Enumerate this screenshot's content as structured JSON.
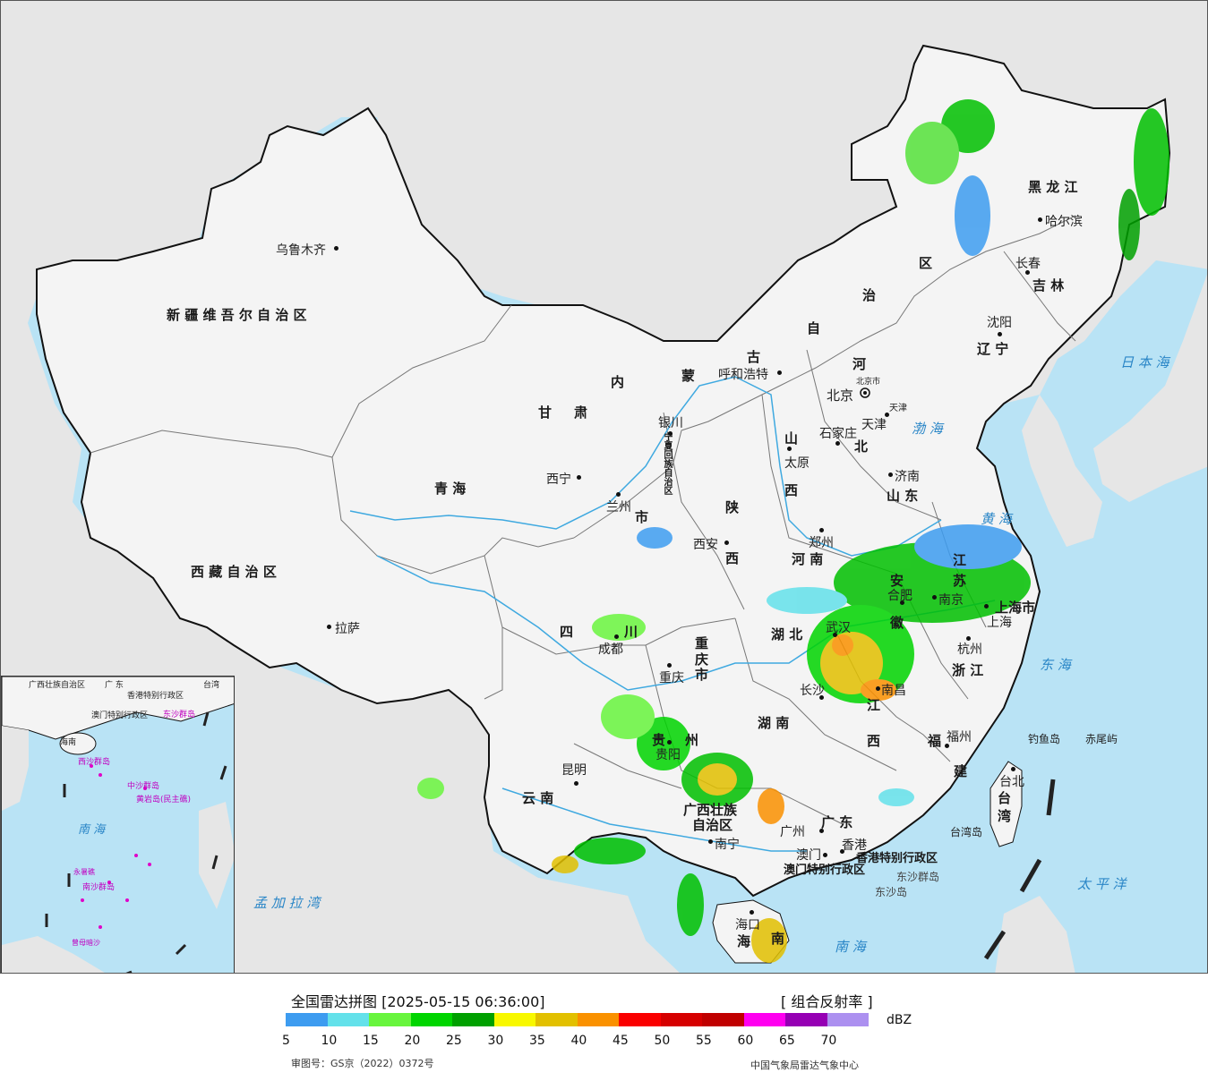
{
  "map": {
    "provinces": [
      "新疆维吾尔自治区",
      "西藏自治区",
      "青海",
      "甘肃",
      "内蒙古自治区",
      "黑龙江",
      "吉林",
      "辽宁",
      "河北",
      "山西",
      "山东",
      "河南",
      "陕西",
      "四川",
      "重庆市",
      "贵州",
      "云南",
      "广西壮族自治区",
      "广东",
      "湖南",
      "湖北",
      "江西",
      "安徽",
      "江苏",
      "浙江",
      "福建",
      "台湾",
      "海南",
      "宁夏回族自治区",
      "上海市",
      "香港特别行政区",
      "澳门特别行政区"
    ],
    "labels": {
      "xinjiang": "新 疆 维 吾 尔 自 治 区",
      "xizang": "西 藏 自 治 区",
      "qinghai": "青 海",
      "gansu_1": "甘",
      "gansu_2": "肃",
      "neimenggu_1": "内",
      "neimenggu_2": "蒙",
      "neimenggu_3": "古",
      "neimenggu_4": "自",
      "neimenggu_5": "治",
      "neimenggu_6": "区",
      "heilongjiang": "黑 龙 江",
      "jilin": "吉 林",
      "liaoning": "辽 宁",
      "hebei_1": "河",
      "hebei_2": "北",
      "shanxi_1": "山",
      "shanxi_2": "西",
      "shandong": "山 东",
      "henan": "河 南",
      "shaanxi_1": "陕",
      "shaanxi_2": "西",
      "sichuan_1": "四",
      "sichuan_2": "川",
      "chongqing_1": "重",
      "chongqing_2": "庆",
      "chongqing_3": "市",
      "guizhou_1": "贵",
      "guizhou_2": "州",
      "yunnan": "云 南",
      "guangxi_1": "广西壮族",
      "guangxi_2": "自治区",
      "guangdong": "广 东",
      "hunan": "湖 南",
      "hubei": "湖 北",
      "jiangxi_1": "江",
      "jiangxi_2": "西",
      "anhui_1": "安",
      "anhui_2": "徽",
      "jiangsu_1": "江",
      "jiangsu_2": "苏",
      "zhejiang": "浙 江",
      "fujian_1": "福",
      "fujian_2": "建",
      "taiwan_1": "台",
      "taiwan_2": "湾",
      "hainan_1": "海",
      "hainan_2": "南",
      "ningxia": "宁夏回族自治区",
      "shanghai": "上海市",
      "hongkong": "香港特别行政区",
      "macau": "澳门特别行政区",
      "gansu_city": "市",
      "beijing_small": "北京市",
      "tianjin_small": "天津"
    },
    "cities": {
      "urumqi": "乌鲁木齐",
      "lhasa": "拉萨",
      "xining": "西宁",
      "lanzhou": "兰州",
      "yinchuan": "银川",
      "hohhot": "呼和浩特",
      "harbin": "哈尔滨",
      "changchun": "长春",
      "shenyang": "沈阳",
      "beijing": "北京",
      "tianjin": "天津",
      "shijiazhuang": "石家庄",
      "taiyuan": "太原",
      "jinan": "济南",
      "zhengzhou": "郑州",
      "xian": "西安",
      "chengdu": "成都",
      "chongqing": "重庆",
      "guiyang": "贵阳",
      "kunming": "昆明",
      "nanning": "南宁",
      "guangzhou": "广州",
      "changsha": "长沙",
      "wuhan": "武汉",
      "nanchang": "南昌",
      "hefei": "合肥",
      "nanjing": "南京",
      "shanghai": "上海",
      "hangzhou": "杭州",
      "fuzhou": "福州",
      "taibei": "台北",
      "haikou": "海口",
      "hongkong": "香港",
      "macau": "澳门"
    },
    "seas": {
      "bohai": "渤 海",
      "huanghai": "黄 海",
      "donghai": "东 海",
      "nanhai": "南 海",
      "taipingyang": "太 平 洋",
      "ribenhai": "日 本 海",
      "mengjialawan": "孟 加 拉 湾"
    },
    "islands": {
      "diaoyudao": "钓鱼岛",
      "chiweiyu": "赤尾屿",
      "taiwandao": "台湾岛",
      "dongsha": "东沙群岛",
      "dongshadao": "东沙岛"
    },
    "inset": {
      "guangxi": "广西壮族自治区",
      "guangdong": "广 东",
      "taiwan": "台湾",
      "hk": "香港特别行政区",
      "macau": "澳门特别行政区",
      "hainan": "海南",
      "dongsha": "东沙群岛",
      "xisha": "西沙群岛",
      "zhongsha": "中沙群岛",
      "huangyan": "黄岩岛(民主礁)",
      "nansha": "南沙群岛",
      "zengmu": "曾母暗沙",
      "yongshu": "永暑礁",
      "nanhai": "南 海"
    },
    "colors": {
      "sea": "#b9e3f5",
      "foreign_land": "#e6e6e6",
      "china_land": "#f4f4f4",
      "border": "#111111",
      "river": "#3fa9e0"
    }
  },
  "legend": {
    "title": "全国雷达拼图 [2025-05-15 06:36:00]",
    "product": "[ 组合反射率 ]",
    "unit": "dBZ",
    "bins": [
      {
        "value": "5",
        "color": "#3d9cf0"
      },
      {
        "value": "10",
        "color": "#63e1ea"
      },
      {
        "value": "15",
        "color": "#68f53d"
      },
      {
        "value": "20",
        "color": "#00d500"
      },
      {
        "value": "25",
        "color": "#00a000"
      },
      {
        "value": "30",
        "color": "#f8f800"
      },
      {
        "value": "35",
        "color": "#e2c000"
      },
      {
        "value": "40",
        "color": "#fa9100"
      },
      {
        "value": "45",
        "color": "#fa0000"
      },
      {
        "value": "50",
        "color": "#d60000"
      },
      {
        "value": "55",
        "color": "#c00000"
      },
      {
        "value": "60",
        "color": "#ff00f0"
      },
      {
        "value": "65",
        "color": "#9600b4"
      },
      {
        "value": "70",
        "color": "#ac90f0"
      }
    ],
    "approval": "审图号：GS京（2022）0372号",
    "producer": "中国气象局雷达气象中心"
  }
}
